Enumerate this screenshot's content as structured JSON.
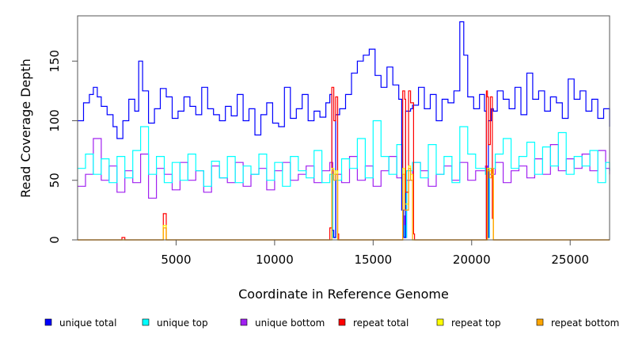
{
  "chart_data": {
    "type": "line",
    "title": "",
    "xlabel": "Coordinate in Reference Genome",
    "ylabel": "Read Coverage Depth",
    "xlim": [
      0,
      27000
    ],
    "ylim": [
      0,
      188
    ],
    "x_ticks": [
      5000,
      10000,
      15000,
      20000,
      25000
    ],
    "y_ticks": [
      0,
      50,
      100,
      150
    ],
    "legend_position": "bottom",
    "series": [
      {
        "name": "unique total",
        "color": "#0000ff",
        "x": [
          0,
          300,
          600,
          800,
          1000,
          1200,
          1500,
          1800,
          2000,
          2300,
          2600,
          2900,
          3100,
          3300,
          3600,
          3900,
          4200,
          4500,
          4800,
          5100,
          5400,
          5700,
          6000,
          6300,
          6600,
          6900,
          7200,
          7500,
          7800,
          8100,
          8400,
          8700,
          9000,
          9300,
          9600,
          9900,
          10200,
          10500,
          10800,
          11100,
          11400,
          11700,
          12000,
          12300,
          12600,
          12800,
          12900,
          13000,
          13100,
          13300,
          13600,
          13900,
          14200,
          14500,
          14800,
          15100,
          15400,
          15700,
          16000,
          16300,
          16450,
          16550,
          16650,
          16900,
          17000,
          17300,
          17600,
          17900,
          18200,
          18500,
          18800,
          19100,
          19400,
          19600,
          19800,
          20100,
          20400,
          20650,
          20750,
          20850,
          21000,
          21100,
          21300,
          21600,
          21900,
          22200,
          22500,
          22800,
          23100,
          23400,
          23700,
          24000,
          24300,
          24600,
          24900,
          25200,
          25500,
          25800,
          26100,
          26400,
          26700,
          27000
        ],
        "values": [
          100,
          115,
          122,
          128,
          120,
          112,
          105,
          95,
          85,
          100,
          118,
          108,
          150,
          125,
          98,
          110,
          127,
          120,
          102,
          108,
          120,
          112,
          105,
          128,
          110,
          105,
          100,
          112,
          104,
          122,
          100,
          110,
          88,
          105,
          115,
          98,
          95,
          128,
          102,
          110,
          122,
          100,
          108,
          103,
          115,
          122,
          8,
          2,
          105,
          110,
          122,
          140,
          150,
          155,
          160,
          138,
          128,
          145,
          130,
          118,
          25,
          2,
          108,
          110,
          113,
          128,
          110,
          122,
          100,
          118,
          115,
          125,
          183,
          155,
          120,
          110,
          122,
          108,
          2,
          100,
          110,
          108,
          125,
          118,
          110,
          128,
          105,
          140,
          118,
          125,
          108,
          120,
          115,
          102,
          135,
          118,
          125,
          108,
          118,
          102,
          110,
          95
        ]
      },
      {
        "name": "unique top",
        "color": "#00ffff",
        "x": [
          0,
          400,
          800,
          1200,
          1600,
          2000,
          2400,
          2800,
          3200,
          3600,
          4000,
          4400,
          4800,
          5200,
          5600,
          6000,
          6400,
          6800,
          7200,
          7600,
          8000,
          8400,
          8800,
          9200,
          9600,
          10000,
          10400,
          10800,
          11200,
          11600,
          12000,
          12400,
          12800,
          12950,
          13100,
          13400,
          13800,
          14200,
          14600,
          15000,
          15400,
          15800,
          16200,
          16500,
          16600,
          16700,
          17000,
          17400,
          17800,
          18200,
          18600,
          19000,
          19400,
          19800,
          20200,
          20700,
          20800,
          20900,
          21200,
          21600,
          22000,
          22400,
          22800,
          23200,
          23600,
          24000,
          24400,
          24800,
          25200,
          25600,
          26000,
          26400,
          26800,
          27000
        ],
        "values": [
          60,
          72,
          55,
          68,
          48,
          70,
          52,
          75,
          95,
          55,
          70,
          48,
          65,
          50,
          72,
          58,
          45,
          66,
          52,
          70,
          48,
          62,
          55,
          72,
          50,
          65,
          45,
          70,
          58,
          52,
          75,
          48,
          55,
          2,
          50,
          68,
          60,
          85,
          52,
          100,
          70,
          55,
          80,
          12,
          2,
          58,
          65,
          52,
          80,
          55,
          70,
          48,
          95,
          72,
          60,
          55,
          2,
          60,
          72,
          85,
          60,
          70,
          82,
          55,
          78,
          62,
          90,
          55,
          70,
          62,
          75,
          48,
          65,
          58
        ]
      },
      {
        "name": "unique bottom",
        "color": "#a020f0",
        "x": [
          0,
          400,
          800,
          1200,
          1600,
          2000,
          2400,
          2800,
          3200,
          3600,
          4000,
          4400,
          4800,
          5200,
          5600,
          6000,
          6400,
          6800,
          7200,
          7600,
          8000,
          8400,
          8800,
          9200,
          9600,
          10000,
          10400,
          10800,
          11200,
          11600,
          12000,
          12400,
          12800,
          12950,
          13100,
          13400,
          13800,
          14200,
          14600,
          15000,
          15400,
          15800,
          16200,
          16500,
          16600,
          16700,
          17000,
          17400,
          17800,
          18200,
          18600,
          19000,
          19400,
          19800,
          20200,
          20700,
          20800,
          20900,
          21200,
          21600,
          22000,
          22400,
          22800,
          23200,
          23600,
          24000,
          24400,
          24800,
          25200,
          25600,
          26000,
          26400,
          26800,
          27000
        ],
        "values": [
          45,
          55,
          85,
          50,
          62,
          40,
          58,
          48,
          72,
          35,
          60,
          55,
          42,
          65,
          50,
          58,
          40,
          62,
          52,
          48,
          65,
          45,
          55,
          60,
          42,
          58,
          65,
          50,
          55,
          62,
          48,
          58,
          65,
          2,
          55,
          48,
          70,
          50,
          62,
          45,
          58,
          70,
          52,
          20,
          2,
          50,
          65,
          58,
          45,
          55,
          62,
          50,
          65,
          50,
          58,
          62,
          2,
          55,
          65,
          48,
          58,
          62,
          52,
          68,
          55,
          80,
          58,
          68,
          60,
          72,
          58,
          75,
          60,
          55
        ]
      },
      {
        "name": "repeat total",
        "color": "#ff0000",
        "x": [
          0,
          2200,
          2250,
          2350,
          2400,
          4300,
          4350,
          4450,
          4500,
          12700,
          12800,
          12900,
          13000,
          13100,
          13200,
          13250,
          16400,
          16500,
          16600,
          16650,
          16800,
          16900,
          17050,
          17100,
          20700,
          20750,
          20800,
          20850,
          20950,
          21050,
          21100,
          27000
        ],
        "values": [
          0,
          0,
          2,
          2,
          0,
          0,
          22,
          22,
          0,
          0,
          10,
          128,
          100,
          120,
          5,
          0,
          0,
          125,
          118,
          40,
          125,
          115,
          5,
          0,
          0,
          125,
          120,
          80,
          120,
          18,
          0,
          0
        ]
      },
      {
        "name": "repeat top",
        "color": "#ffff00",
        "x": [
          0,
          4300,
          4350,
          4450,
          4500,
          12800,
          12900,
          13000,
          13100,
          13200,
          16400,
          16500,
          16600,
          16800,
          16900,
          17000,
          20700,
          20800,
          20900,
          21000,
          21100,
          27000
        ],
        "values": [
          0,
          0,
          12,
          12,
          0,
          0,
          60,
          55,
          58,
          0,
          0,
          60,
          30,
          62,
          55,
          0,
          0,
          60,
          58,
          55,
          0,
          0
        ]
      },
      {
        "name": "repeat bottom",
        "color": "#ffa500",
        "x": [
          0,
          4300,
          4350,
          4450,
          4500,
          12800,
          12900,
          13000,
          13100,
          13200,
          16400,
          16500,
          16600,
          16800,
          16900,
          17000,
          20700,
          20800,
          20900,
          21000,
          21100,
          27000
        ],
        "values": [
          0,
          0,
          10,
          10,
          0,
          0,
          58,
          50,
          55,
          0,
          0,
          55,
          25,
          60,
          50,
          0,
          0,
          58,
          52,
          60,
          0,
          0
        ]
      }
    ]
  }
}
